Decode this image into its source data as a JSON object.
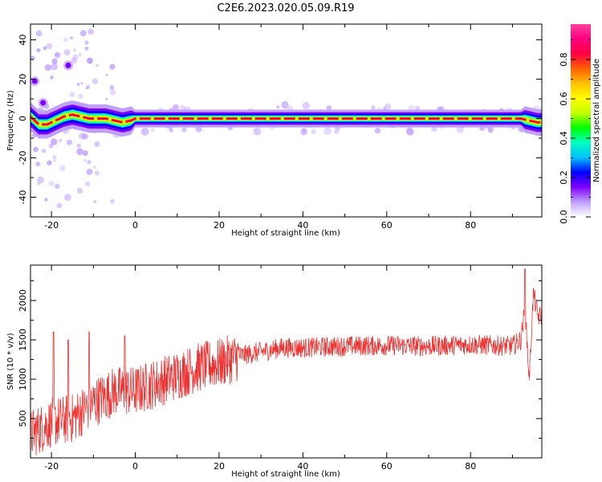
{
  "figure": {
    "title": "C2E6.2023.020.05.09.R19"
  },
  "chart_data": [
    {
      "type": "heatmap",
      "xlabel": "Height of straight line (km)",
      "ylabel": "Frequency (Hz)",
      "xlim": [
        -25,
        97
      ],
      "ylim": [
        -50,
        48
      ],
      "xticks": [
        -20,
        0,
        20,
        40,
        60,
        80
      ],
      "yticks": [
        -40,
        -20,
        0,
        20,
        40
      ],
      "ridge": {
        "x": [
          -25,
          -23,
          -21,
          -19,
          -17,
          -15,
          -13,
          -11,
          -9,
          -7,
          -5,
          -3,
          -1,
          0,
          5,
          10,
          20,
          40,
          60,
          80,
          92,
          94,
          96
        ],
        "y": [
          1,
          -3,
          -3,
          -1,
          1,
          2,
          1,
          0,
          0,
          0,
          -1,
          -2,
          -1,
          0,
          0,
          0,
          0,
          0,
          0,
          0,
          0,
          -1,
          -2
        ]
      },
      "blobs": [
        {
          "x": -16,
          "y": 27
        },
        {
          "x": -24,
          "y": 19
        },
        {
          "x": -22,
          "y": 8
        }
      ],
      "colorbar": {
        "label": "Normalized spectral amplitude",
        "ticks": [
          "0.0",
          "0.2",
          "0.4",
          "0.6",
          "0.8"
        ],
        "tick_values": [
          0,
          0.2,
          0.4,
          0.6,
          0.8
        ],
        "range": [
          0,
          0.98
        ],
        "colors": [
          "#ffffff",
          "#c0a0ff",
          "#8000ff",
          "#0000ff",
          "#00c0ff",
          "#00ffc0",
          "#00ff00",
          "#c0ff00",
          "#ffff00",
          "#ffc000",
          "#ff6000",
          "#ff0040",
          "#ff0080",
          "#ff40a0"
        ]
      }
    },
    {
      "type": "line",
      "xlabel": "Height of straight line (km)",
      "ylabel": "SNR (10 * v/v)",
      "xlim": [
        -25,
        97
      ],
      "ylim": [
        0,
        2450
      ],
      "xticks": [
        -20,
        0,
        20,
        40,
        60,
        80
      ],
      "yticks": [
        500,
        1000,
        1500,
        2000
      ],
      "color": "#ee3333",
      "trend": {
        "x": [
          -25,
          -20,
          -15,
          -10,
          -5,
          0,
          5,
          10,
          15,
          20,
          25,
          30,
          35,
          40,
          50,
          60,
          70,
          80,
          90,
          92,
          93,
          94,
          95,
          96
        ],
        "y": [
          300,
          450,
          500,
          700,
          850,
          850,
          950,
          1050,
          1150,
          1200,
          1300,
          1350,
          1400,
          1400,
          1420,
          1430,
          1420,
          1440,
          1420,
          1500,
          1900,
          1000,
          2100,
          1800
        ]
      },
      "spikes": [
        {
          "x": -19.5,
          "y": 1600
        },
        {
          "x": -16,
          "y": 1500
        },
        {
          "x": -11,
          "y": 1600
        },
        {
          "x": -2.5,
          "y": 1550
        },
        {
          "x": 93,
          "y": 2400
        }
      ]
    }
  ]
}
